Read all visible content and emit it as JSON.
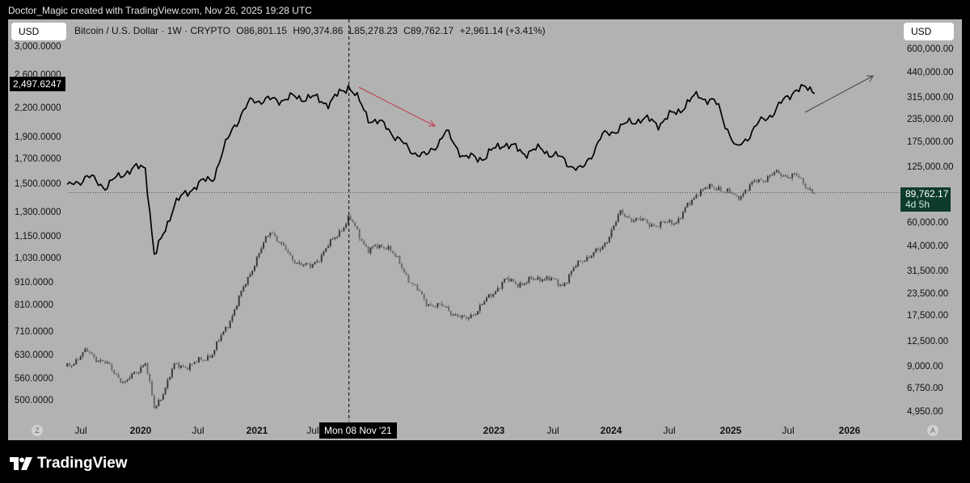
{
  "attribution": "Doctor_Magic created with TradingView.com, Nov 26, 2025 19:28 UTC",
  "brand": "TradingView",
  "currency_left": "USD",
  "currency_right": "USD",
  "legend": {
    "symbol": "Bitcoin / U.S. Dollar · 1W · CRYPTO",
    "open": "O86,801.15",
    "high": "H90,374.86",
    "low": "L85,278.23",
    "close": "C89,762.17",
    "change": "+2,961.14 (+3.41%)"
  },
  "labels": {
    "left_last_value": "2,497.6247",
    "right_last_price": "89,762.17",
    "right_countdown": "4d 5h",
    "crosshair_date": "Mon 08 Nov '21",
    "corner_left": "Z",
    "corner_right": "A"
  },
  "colors": {
    "background": "#b2b2b2",
    "candle_up": "#3a3a3a",
    "candle_down": "#6b6b6b",
    "line": "#000000",
    "down_arrow": "#c2394f",
    "up_arrow": "#444444",
    "price_tag": "#0d3b2e"
  },
  "chart_data": {
    "type": "line",
    "log_scale": true,
    "y_axis_left_ticks": [
      "3,000.0000",
      "2,600.0000",
      "2,200.0000",
      "1,900.0000",
      "1,700.0000",
      "1,500.0000",
      "1,300.0000",
      "1,150.0000",
      "1,030.0000",
      "910.0000",
      "810.0000",
      "710.0000",
      "630.0000",
      "560.0000",
      "500.0000"
    ],
    "y_axis_right_ticks": [
      "600,000.00",
      "440,000.00",
      "315,000.00",
      "235,000.00",
      "175,000.00",
      "125,000.00",
      "60,000.00",
      "44,000.00",
      "31,500.00",
      "23,500.00",
      "17,500.00",
      "12,500.00",
      "9,000.00",
      "6,750.00",
      "4,950.00"
    ],
    "x_axis_ticks": [
      {
        "label": "Jul",
        "bold": false
      },
      {
        "label": "2020",
        "bold": true
      },
      {
        "label": "Jul",
        "bold": false
      },
      {
        "label": "2021",
        "bold": true
      },
      {
        "label": "Jul",
        "bold": false
      },
      {
        "label": "2023",
        "bold": true
      },
      {
        "label": "Jul",
        "bold": false
      },
      {
        "label": "2024",
        "bold": true
      },
      {
        "label": "Jul",
        "bold": false
      },
      {
        "label": "2025",
        "bold": true
      },
      {
        "label": "Jul",
        "bold": false
      },
      {
        "label": "2026",
        "bold": true
      }
    ],
    "series": [
      {
        "kind": "line",
        "axis": "left",
        "dates": [
          "2019-06",
          "2019-08",
          "2019-10",
          "2019-12",
          "2020-02",
          "2020-03",
          "2020-05",
          "2020-07",
          "2020-09",
          "2020-11",
          "2021-01",
          "2021-03",
          "2021-05",
          "2021-07",
          "2021-09",
          "2021-11",
          "2022-01",
          "2022-03",
          "2022-05",
          "2022-07",
          "2022-09",
          "2022-11",
          "2023-01",
          "2023-03",
          "2023-05",
          "2023-07",
          "2023-09",
          "2023-11",
          "2024-01",
          "2024-03",
          "2024-05",
          "2024-07",
          "2024-09",
          "2024-11",
          "2025-01",
          "2025-03",
          "2025-05",
          "2025-07",
          "2025-09",
          "2025-11"
        ],
        "values": [
          1470,
          1560,
          1480,
          1600,
          1640,
          1030,
          1350,
          1480,
          1550,
          2000,
          2300,
          2290,
          2320,
          2330,
          2260,
          2480,
          2100,
          2000,
          1800,
          1720,
          1950,
          1710,
          1720,
          1850,
          1760,
          1790,
          1700,
          1600,
          1900,
          2000,
          2090,
          2040,
          2180,
          2360,
          2240,
          1780,
          2010,
          2180,
          2430,
          2420
        ]
      },
      {
        "kind": "candlestick",
        "axis": "right",
        "dates": [
          "2019-06",
          "2019-08",
          "2019-10",
          "2019-12",
          "2020-02",
          "2020-03",
          "2020-05",
          "2020-07",
          "2020-09",
          "2020-11",
          "2021-01",
          "2021-03",
          "2021-05",
          "2021-07",
          "2021-09",
          "2021-11",
          "2022-01",
          "2022-03",
          "2022-05",
          "2022-07",
          "2022-09",
          "2022-11",
          "2023-01",
          "2023-03",
          "2023-05",
          "2023-07",
          "2023-09",
          "2023-11",
          "2024-01",
          "2024-03",
          "2024-05",
          "2024-07",
          "2024-09",
          "2024-11",
          "2025-01",
          "2025-03",
          "2025-05",
          "2025-07",
          "2025-09",
          "2025-11"
        ],
        "values": [
          9000,
          11000,
          9300,
          7200,
          9600,
          5000,
          9000,
          9200,
          10800,
          18000,
          33000,
          55000,
          38000,
          33000,
          45000,
          64000,
          42000,
          45000,
          30000,
          21000,
          19500,
          16500,
          21000,
          28000,
          27000,
          29500,
          26500,
          37000,
          42000,
          68000,
          62000,
          58000,
          63000,
          92000,
          97000,
          84000,
          104000,
          115000,
          112000,
          89762.17
        ]
      }
    ]
  }
}
